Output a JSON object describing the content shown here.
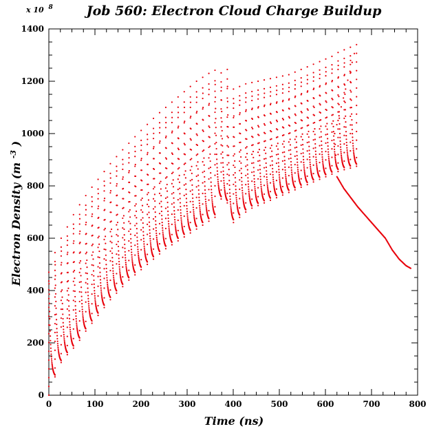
{
  "chart_data": {
    "type": "scatter",
    "title": "Job 560: Electron Cloud Charge Buildup",
    "xlabel": "Time (ns)",
    "ylabel_main": "Electron Density (m",
    "ylabel_exp": "-3",
    "ylabel_close": ")",
    "y_multiplier": "x 10",
    "y_multiplier_exp": "8",
    "xlim": [
      0,
      800
    ],
    "ylim": [
      0,
      1400
    ],
    "xticks": [
      "0",
      "100",
      "200",
      "300",
      "400",
      "500",
      "600",
      "700",
      "800"
    ],
    "yticks": [
      "0",
      "200",
      "400",
      "600",
      "800",
      "1000",
      "1200",
      "1400"
    ],
    "grid": false,
    "legend": "none",
    "series_color": "#e8000b",
    "bunch_train": {
      "first_bunch_ns": 0,
      "spacing_ns": 13.35,
      "last_bunch_ns": 617,
      "peak_density": [
        470,
        545,
        600,
        643,
        690,
        728,
        763,
        795,
        825,
        855,
        885,
        912,
        938,
        963,
        988,
        1012,
        1035,
        1058,
        1080,
        1100,
        1120,
        1140,
        1160,
        1180,
        1200,
        1215,
        1230,
        1242,
        1232,
        1245,
        1170,
        1180,
        1190,
        1195,
        1200,
        1205,
        1210,
        1215,
        1220,
        1225,
        1235,
        1245,
        1255,
        1265,
        1275,
        1285,
        1295,
        1310,
        1320,
        1330,
        1340
      ],
      "trough_density": [
        70,
        125,
        155,
        180,
        210,
        245,
        275,
        305,
        335,
        365,
        390,
        415,
        440,
        460,
        480,
        500,
        520,
        540,
        560,
        575,
        590,
        605,
        620,
        635,
        650,
        665,
        680,
        750,
        735,
        660,
        680,
        700,
        715,
        725,
        735,
        745,
        755,
        765,
        775,
        785,
        795,
        805,
        815,
        825,
        835,
        845,
        855,
        862,
        868,
        875,
        880
      ]
    },
    "decay_tail": {
      "x": [
        620,
        625,
        640,
        655,
        670,
        685,
        700,
        715,
        730,
        745,
        760,
        775,
        785
      ],
      "y": [
        1000,
        835,
        790,
        755,
        720,
        690,
        660,
        630,
        600,
        555,
        520,
        495,
        485
      ]
    }
  }
}
